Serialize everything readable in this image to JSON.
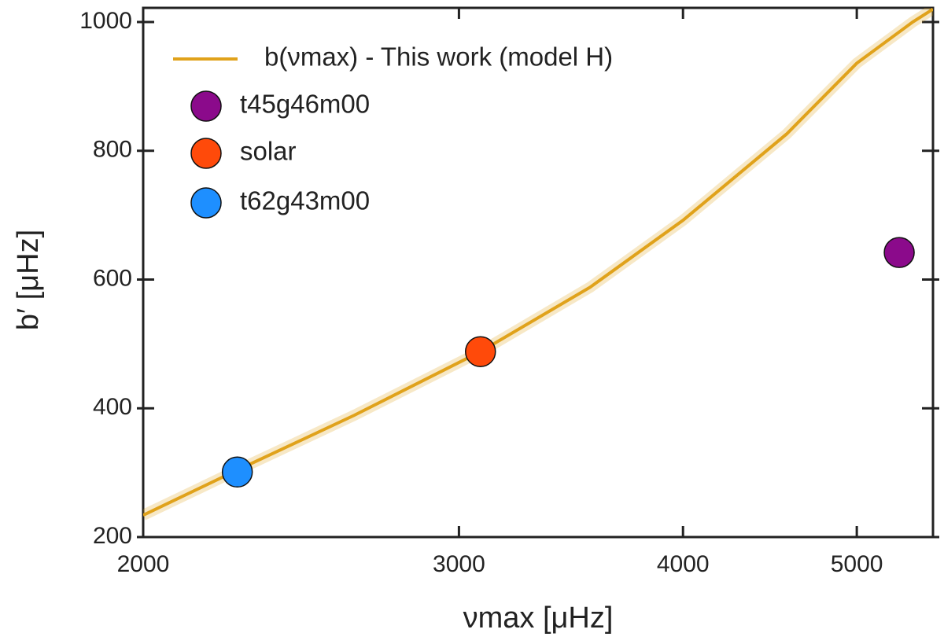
{
  "chart_data": {
    "type": "scatter",
    "xlabel": "νmax [μHz]",
    "ylabel": "b′ [μHz]",
    "xscale": "log",
    "xlim": [
      2000,
      5514
    ],
    "ylim": [
      200,
      1022
    ],
    "xticks": [
      2000,
      3000,
      4000,
      5000
    ],
    "yticks": [
      200,
      400,
      600,
      800,
      1000
    ],
    "series": [
      {
        "name": "b(νmax) - This work (model H)",
        "color": "#e0a21b",
        "kind": "line",
        "x": [
          2000,
          2257,
          2622,
          3084,
          3550,
          4000,
          4569,
          5000,
          5372,
          5514
        ],
        "values": [
          234,
          304,
          389,
          488,
          588,
          692,
          826,
          936,
          1000,
          1020
        ]
      },
      {
        "name": "t45g46m00",
        "color": "#8b0a8b",
        "kind": "points",
        "x": [
          5280
        ],
        "values": [
          642
        ]
      },
      {
        "name": "solar",
        "color": "#ff4a0a",
        "kind": "points",
        "x": [
          3084
        ],
        "values": [
          488
        ]
      },
      {
        "name": "t62g43m00",
        "color": "#1e8fff",
        "kind": "points",
        "x": [
          2257
        ],
        "values": [
          301
        ]
      }
    ]
  }
}
